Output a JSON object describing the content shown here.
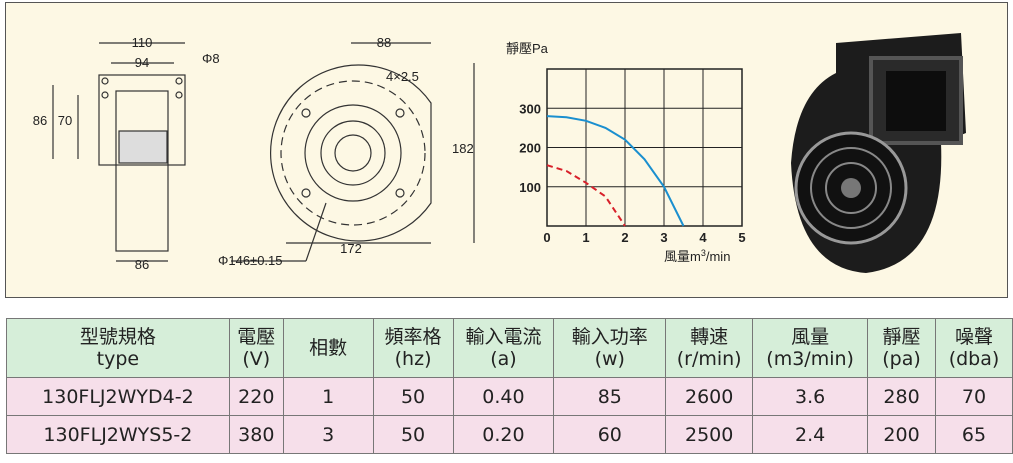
{
  "drawings": {
    "front": {
      "dims": [
        "110",
        "94",
        "Φ8",
        "86",
        "70",
        "86"
      ]
    },
    "side": {
      "dims": [
        "88",
        "4×2.5",
        "182",
        "172",
        "Φ146±0.15"
      ]
    }
  },
  "chart_data": {
    "type": "line",
    "y_label": "靜壓Pa",
    "x_label": {
      "text": "風量m",
      "sup": "3",
      "unit": "/min"
    },
    "x": [
      0,
      0.5,
      1,
      1.5,
      2,
      2.5,
      3,
      3.5
    ],
    "series": [
      {
        "color": "#1a8fcf",
        "dash": false,
        "values": [
          280,
          277,
          268,
          250,
          220,
          170,
          100,
          0
        ]
      },
      {
        "color": "#d8202a",
        "dash": true,
        "values": [
          155,
          140,
          110,
          75,
          0,
          null,
          null,
          null
        ]
      }
    ],
    "xlim": [
      0,
      5
    ],
    "ylim": [
      0,
      400
    ],
    "xticks": [
      0,
      1,
      2,
      3,
      4,
      5
    ],
    "yticks": [
      100,
      200,
      300
    ],
    "grid": true
  },
  "table": {
    "header": [
      [
        "型號規格",
        "type"
      ],
      [
        "電壓",
        "(V)"
      ],
      [
        "相數",
        ""
      ],
      [
        "頻率格",
        "(hz)"
      ],
      [
        "輸入電流",
        "(a)"
      ],
      [
        "輸入功率",
        "(w)"
      ],
      [
        "轉速",
        "(r/min)"
      ],
      [
        "風量",
        "(m3/min)"
      ],
      [
        "靜壓",
        "(pa)"
      ],
      [
        "噪聲",
        "(dba)"
      ]
    ],
    "rows": [
      [
        "130FLJ2WYD4-2",
        "220",
        "1",
        "50",
        "0.40",
        "85",
        "2600",
        "3.6",
        "280",
        "70"
      ],
      [
        "130FLJ2WYS5-2",
        "380",
        "3",
        "50",
        "0.20",
        "60",
        "2500",
        "2.4",
        "200",
        "65"
      ]
    ]
  }
}
